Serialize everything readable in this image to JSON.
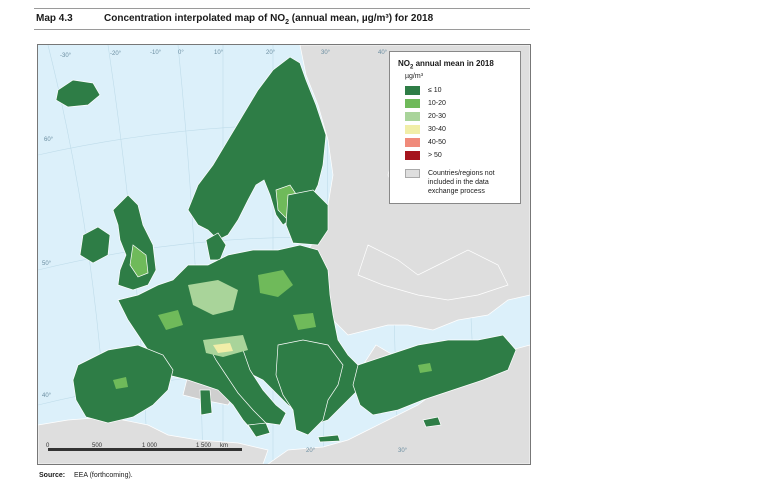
{
  "header": {
    "map_number": "Map 4.3",
    "title_pre": "Concentration interpolated map of NO",
    "title_sub": "2",
    "title_post": " (annual mean, µg/m³) for 2018"
  },
  "legend": {
    "title_pre": "NO",
    "title_sub": "2",
    "title_post": " annual mean in 2018",
    "unit": "µg/m³",
    "items": [
      {
        "label": "≤ 10",
        "color": "#2e7d46"
      },
      {
        "label": "10-20",
        "color": "#6fba5a"
      },
      {
        "label": "20-30",
        "color": "#a9d49a"
      },
      {
        "label": "30-40",
        "color": "#f1eea8"
      },
      {
        "label": "40-50",
        "color": "#f08a7a"
      },
      {
        "label": "> 50",
        "color": "#a5141d"
      }
    ],
    "not_included": "Countries/regions not included in the data exchange process"
  },
  "graticule": {
    "lon_labels": [
      "-30°",
      "-20°",
      "-10°",
      "0°",
      "10°",
      "20°",
      "30°",
      "40°",
      "20°",
      "30°"
    ],
    "lat_labels": [
      "60°",
      "50°",
      "40°"
    ]
  },
  "scale_bar": {
    "labels": [
      "0",
      "500",
      "1 000",
      "1 500",
      "km"
    ]
  },
  "source": {
    "label": "Source:",
    "text": "EEA (forthcoming)."
  },
  "colors": {
    "sea": "#dcf0fa",
    "not_included_land": "#dedede",
    "borders": "#ffffff"
  }
}
